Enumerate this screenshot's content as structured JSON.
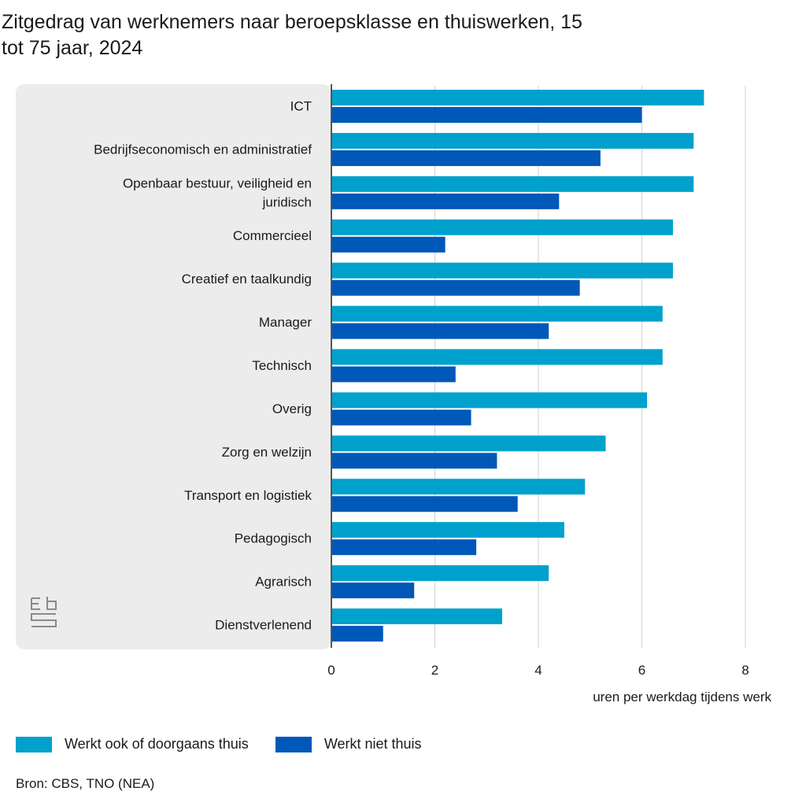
{
  "title": "Zitgedrag van werknemers naar beroepsklasse en thuiswerken, 15 tot 75 jaar, 2024",
  "source": "Bron: CBS, TNO (NEA)",
  "colors": {
    "series1": "#00a1cd",
    "series2": "#0058b8",
    "panel": "#ececec",
    "grid": "#d2d2d2",
    "axis": "#555555",
    "text": "#1a1a1a"
  },
  "logo": {
    "icon": "cbs-logo-icon",
    "text": "cbs"
  },
  "chart_data": {
    "type": "bar",
    "orientation": "horizontal",
    "categories": [
      "ICT",
      "Bedrijfseconomisch en administratief",
      "Openbaar bestuur, veiligheid en juridisch",
      "Commercieel",
      "Creatief en taalkundig",
      "Manager",
      "Technisch",
      "Overig",
      "Zorg en welzijn",
      "Transport en logistiek",
      "Pedagogisch",
      "Agrarisch",
      "Dienstverlenend"
    ],
    "series": [
      {
        "name": "Werkt ook of doorgaans thuis",
        "values": [
          7.2,
          7.0,
          7.0,
          6.6,
          6.6,
          6.4,
          6.4,
          6.1,
          5.3,
          4.9,
          4.5,
          4.2,
          3.3
        ]
      },
      {
        "name": "Werkt niet thuis",
        "values": [
          6.0,
          5.2,
          4.4,
          2.2,
          4.8,
          4.2,
          2.4,
          2.7,
          3.2,
          3.6,
          2.8,
          1.6,
          1.0
        ]
      }
    ],
    "xlabel": "uren per werkdag tijdens werk",
    "ylabel": "",
    "xlim": [
      0,
      8
    ],
    "xticks": [
      0,
      2,
      4,
      6,
      8
    ],
    "grid": true,
    "legend_position": "bottom-left"
  }
}
